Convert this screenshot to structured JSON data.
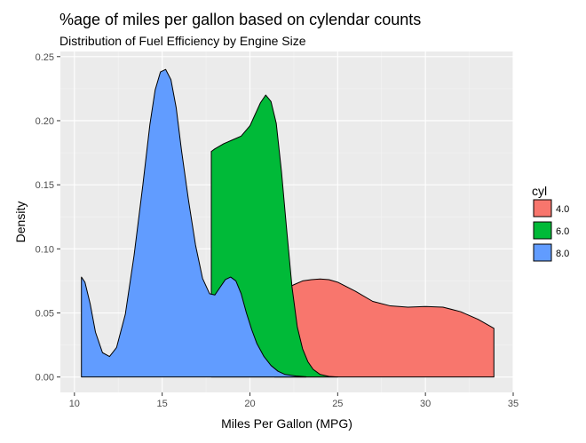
{
  "chart_data": {
    "type": "area",
    "title": "%age of miles per gallon based on cylendar counts",
    "subtitle": "Distribution of Fuel Efficiency by Engine Size",
    "xlabel": "Miles Per Gallon (MPG)",
    "ylabel": "Density",
    "xlim": [
      9.2,
      35.0
    ],
    "ylim": [
      -0.012,
      0.254
    ],
    "x_ticks": [
      10,
      15,
      20,
      25,
      30,
      35
    ],
    "x_tick_labels": [
      "10",
      "15",
      "20",
      "25",
      "30",
      "35"
    ],
    "y_ticks": [
      0.0,
      0.05,
      0.1,
      0.15,
      0.2,
      0.25
    ],
    "y_tick_labels": [
      "0.00",
      "0.05",
      "0.10",
      "0.15",
      "0.20",
      "0.25"
    ],
    "grid": true,
    "legend": {
      "title": "cyl",
      "position": "right"
    },
    "series": [
      {
        "name": "4.0",
        "color": "#F8766D",
        "x": [
          21.4,
          22.0,
          22.5,
          23.0,
          23.5,
          24.0,
          24.5,
          25.0,
          26.0,
          27.0,
          28.0,
          29.0,
          30.0,
          31.0,
          32.0,
          33.0,
          33.9
        ],
        "y": [
          0.061,
          0.068,
          0.072,
          0.075,
          0.076,
          0.0765,
          0.076,
          0.074,
          0.067,
          0.059,
          0.0555,
          0.0545,
          0.055,
          0.0545,
          0.051,
          0.045,
          0.038
        ]
      },
      {
        "name": "6.0",
        "color": "#00BA38",
        "x": [
          17.8,
          18.0,
          18.5,
          19.0,
          19.5,
          20.0,
          20.3,
          20.6,
          20.9,
          21.2,
          21.5,
          21.8,
          22.1,
          22.4,
          22.7,
          23.0,
          23.3,
          23.6,
          24.0,
          24.5,
          25.0
        ],
        "y": [
          0.176,
          0.178,
          0.182,
          0.185,
          0.188,
          0.196,
          0.205,
          0.214,
          0.22,
          0.215,
          0.198,
          0.16,
          0.114,
          0.07,
          0.039,
          0.022,
          0.012,
          0.006,
          0.002,
          0.0005,
          0.0
        ]
      },
      {
        "name": "8.0",
        "color": "#619CFF",
        "x": [
          10.4,
          10.6,
          10.9,
          11.2,
          11.6,
          12.0,
          12.4,
          12.9,
          13.4,
          13.9,
          14.3,
          14.6,
          14.9,
          15.2,
          15.5,
          15.8,
          16.1,
          16.5,
          16.9,
          17.3,
          17.7,
          18.0,
          18.3,
          18.6,
          18.9,
          19.2,
          19.5,
          19.8,
          20.1,
          20.4,
          20.8,
          21.2,
          21.6,
          22.0,
          22.6,
          23.2
        ],
        "y": [
          0.078,
          0.074,
          0.057,
          0.035,
          0.019,
          0.016,
          0.023,
          0.049,
          0.095,
          0.15,
          0.197,
          0.224,
          0.238,
          0.24,
          0.232,
          0.21,
          0.177,
          0.138,
          0.103,
          0.077,
          0.065,
          0.064,
          0.07,
          0.076,
          0.078,
          0.075,
          0.065,
          0.05,
          0.037,
          0.026,
          0.016,
          0.009,
          0.0045,
          0.002,
          0.0008,
          0.0002
        ]
      }
    ]
  }
}
